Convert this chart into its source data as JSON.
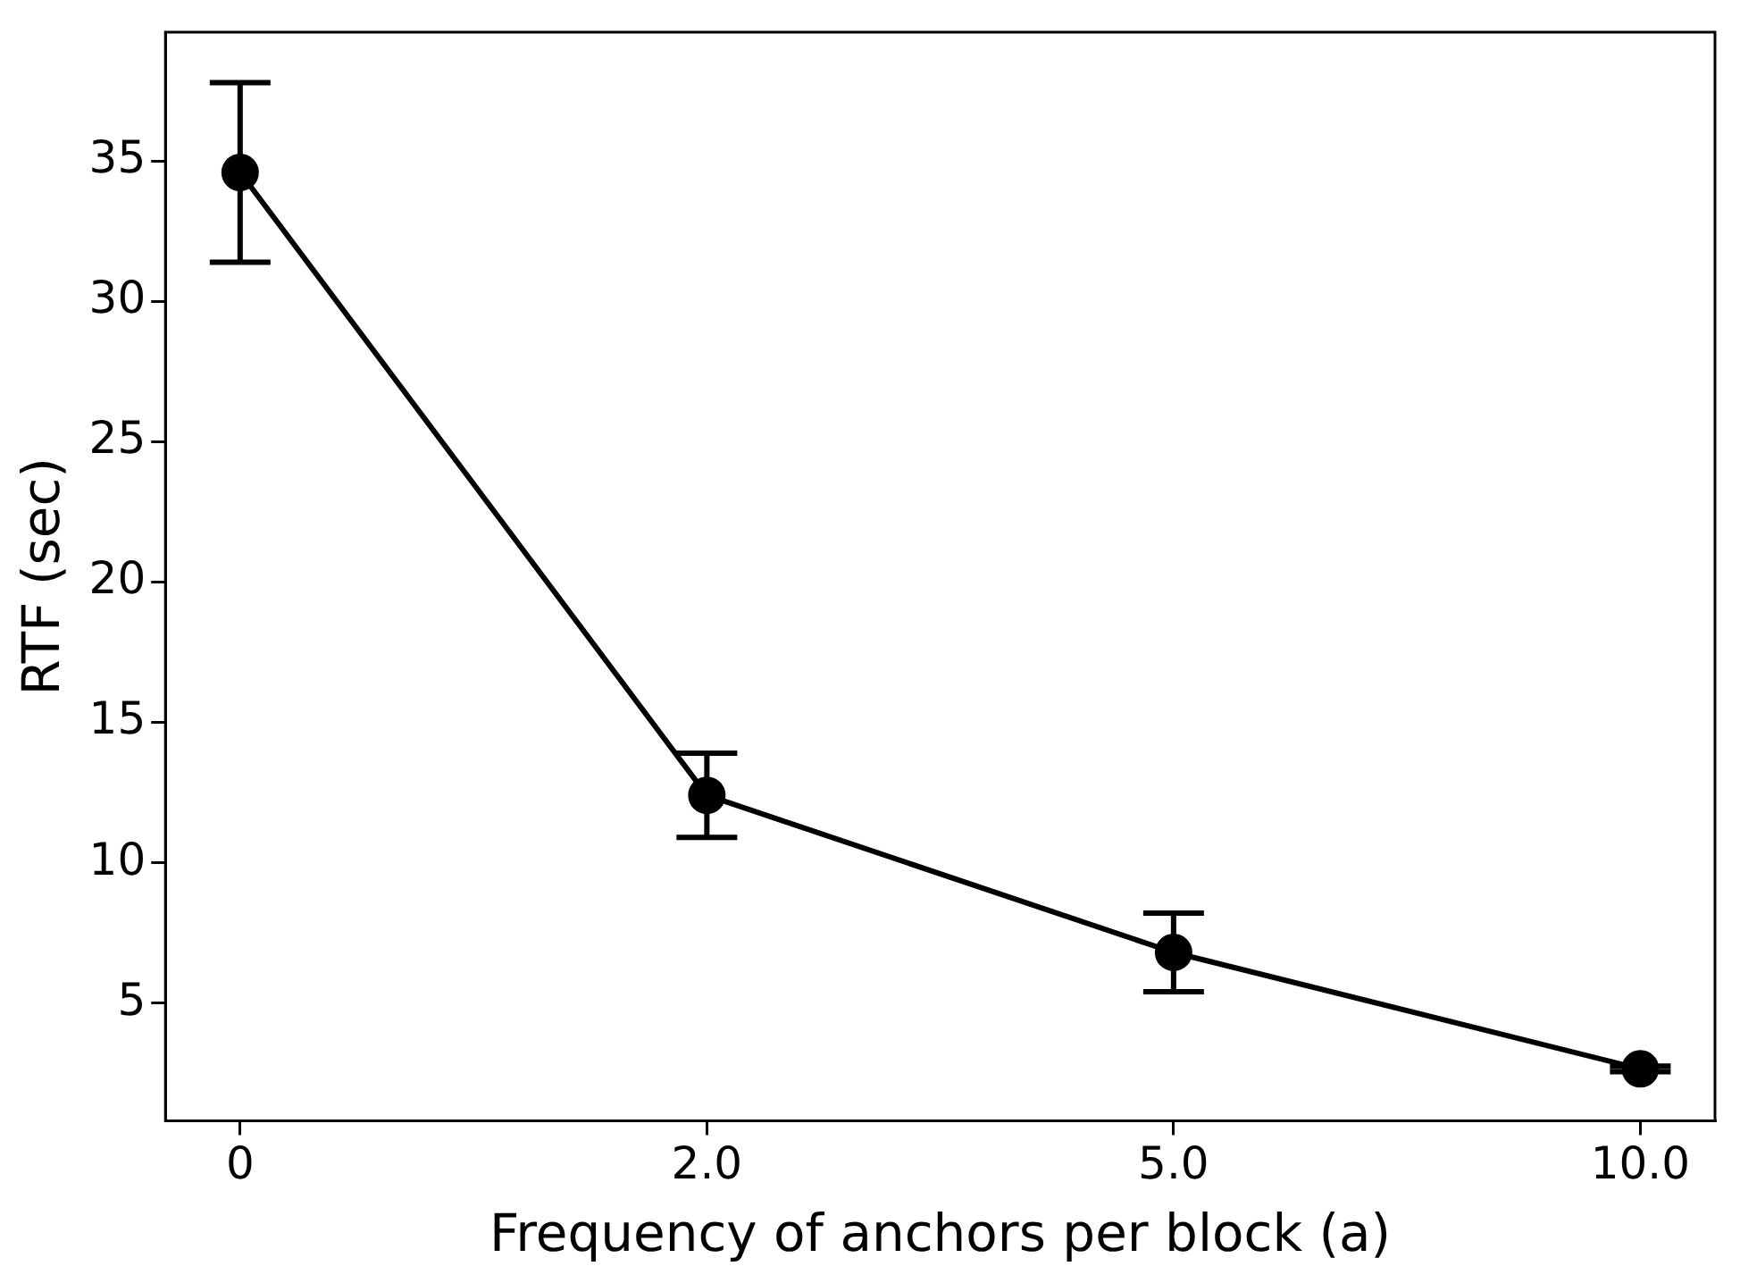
{
  "chart_data": {
    "type": "line",
    "xlabel": "Frequency of anchors per block (a)",
    "ylabel": "RTF (sec)",
    "categories": [
      "0",
      "2.0",
      "5.0",
      "10.0"
    ],
    "series": [
      {
        "color": "#000000",
        "values": [
          34.6,
          12.4,
          6.8,
          2.65
        ],
        "errors": [
          3.2,
          1.5,
          1.4,
          0.1
        ]
      }
    ],
    "ylim": [
      0.8,
      39.6
    ],
    "yticks": [
      5,
      10,
      15,
      20,
      25,
      30,
      35
    ],
    "grid": false,
    "legend": false,
    "marker": "circle",
    "line_style": "solid"
  }
}
